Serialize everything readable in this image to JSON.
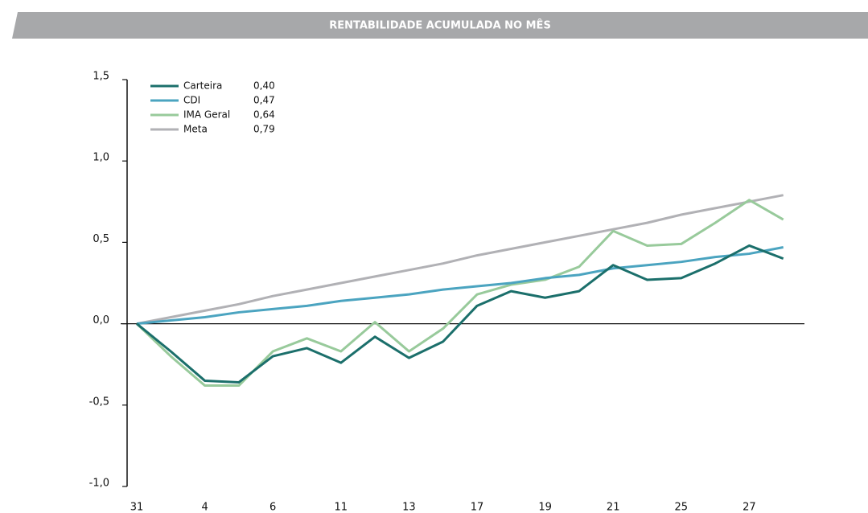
{
  "chart_data": {
    "type": "line",
    "title": "RENTABILIDADE ACUMULADA NO MÊS",
    "categories": [
      "31",
      null,
      "4",
      null,
      "6",
      null,
      "11",
      null,
      "13",
      null,
      "17",
      null,
      "19",
      null,
      "21",
      null,
      "25",
      null,
      "27",
      null
    ],
    "series": [
      {
        "name": "Carteira",
        "legend_label": "0,40",
        "color": "#1b6f6b",
        "values": [
          0,
          -0.17,
          -0.35,
          -0.36,
          -0.2,
          -0.15,
          -0.24,
          -0.08,
          -0.21,
          -0.11,
          0.11,
          0.2,
          0.16,
          0.2,
          0.36,
          0.27,
          0.28,
          0.37,
          0.48,
          0.4
        ]
      },
      {
        "name": "CDI",
        "legend_label": "0,47",
        "color": "#4ba4c0",
        "values": [
          0,
          0.02,
          0.04,
          0.07,
          0.09,
          0.11,
          0.14,
          0.16,
          0.18,
          0.21,
          0.23,
          0.25,
          0.28,
          0.3,
          0.34,
          0.36,
          0.38,
          0.41,
          0.43,
          0.47
        ]
      },
      {
        "name": "IMA Geral",
        "legend_label": "0,64",
        "color": "#98ca9b",
        "values": [
          0,
          -0.2,
          -0.38,
          -0.38,
          -0.17,
          -0.09,
          -0.17,
          0.01,
          -0.17,
          -0.03,
          0.18,
          0.24,
          0.27,
          0.35,
          0.57,
          0.48,
          0.49,
          0.62,
          0.76,
          0.64
        ]
      },
      {
        "name": "Meta",
        "legend_label": "0,79",
        "color": "#b1b1b5",
        "values": [
          0,
          0.04,
          0.08,
          0.12,
          0.17,
          0.21,
          0.25,
          0.29,
          0.33,
          0.37,
          0.42,
          0.46,
          0.5,
          0.54,
          0.58,
          0.62,
          0.67,
          0.71,
          0.75,
          0.79
        ]
      }
    ],
    "ylim": [
      -1.0,
      1.5
    ],
    "yticks": [
      {
        "value": -1.0,
        "label": "-1,0"
      },
      {
        "value": -0.5,
        "label": "-0,5"
      },
      {
        "value": 0,
        "label": "0,0"
      },
      {
        "value": 0.5,
        "label": "0,5"
      },
      {
        "value": 1.0,
        "label": "1,0"
      },
      {
        "value": 1.5,
        "label": "1,5"
      }
    ]
  }
}
